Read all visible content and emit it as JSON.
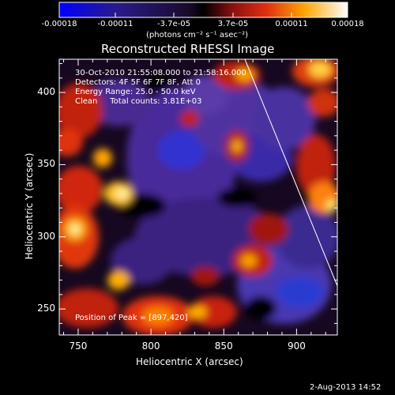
{
  "colorbar": {
    "ticks": [
      "-0.00018",
      "-0.00011",
      "-3.7e-05",
      "3.7e-05",
      "0.00011",
      "0.00018"
    ],
    "units": "(photons cm⁻² s⁻¹ asec⁻²)"
  },
  "header": {
    "info_line1": "30-Oct-2010 21:55:08.000 to 21:58:16.000",
    "info_line2": "Detectors: 4F 5F 6F 7F 8F, Att 0",
    "info_line3": "Energy Range: 25.0 - 50.0 keV",
    "info_line4": "Clean     Total counts: 3.81E+03",
    "peak": "Position of Peak = [897,420]"
  },
  "footer": {
    "timestamp": "2-Aug-2013 14:52"
  },
  "chart_data": {
    "type": "heatmap",
    "title": "Reconstructed RHESSI Image",
    "xlabel": "Heliocentric X (arcsec)",
    "ylabel": "Heliocentric Y (arcsec)",
    "xlim": [
      737,
      928
    ],
    "ylim": [
      232,
      423
    ],
    "x_ticks": [
      750,
      800,
      850,
      900
    ],
    "y_ticks": [
      250,
      300,
      350,
      400
    ],
    "colorbar_range": [
      -0.00018,
      0.00018
    ],
    "peak_position": [
      897,
      420
    ],
    "colors": {
      "low": "#0000ff",
      "mid": "#000000",
      "high": "#ffffff"
    }
  }
}
